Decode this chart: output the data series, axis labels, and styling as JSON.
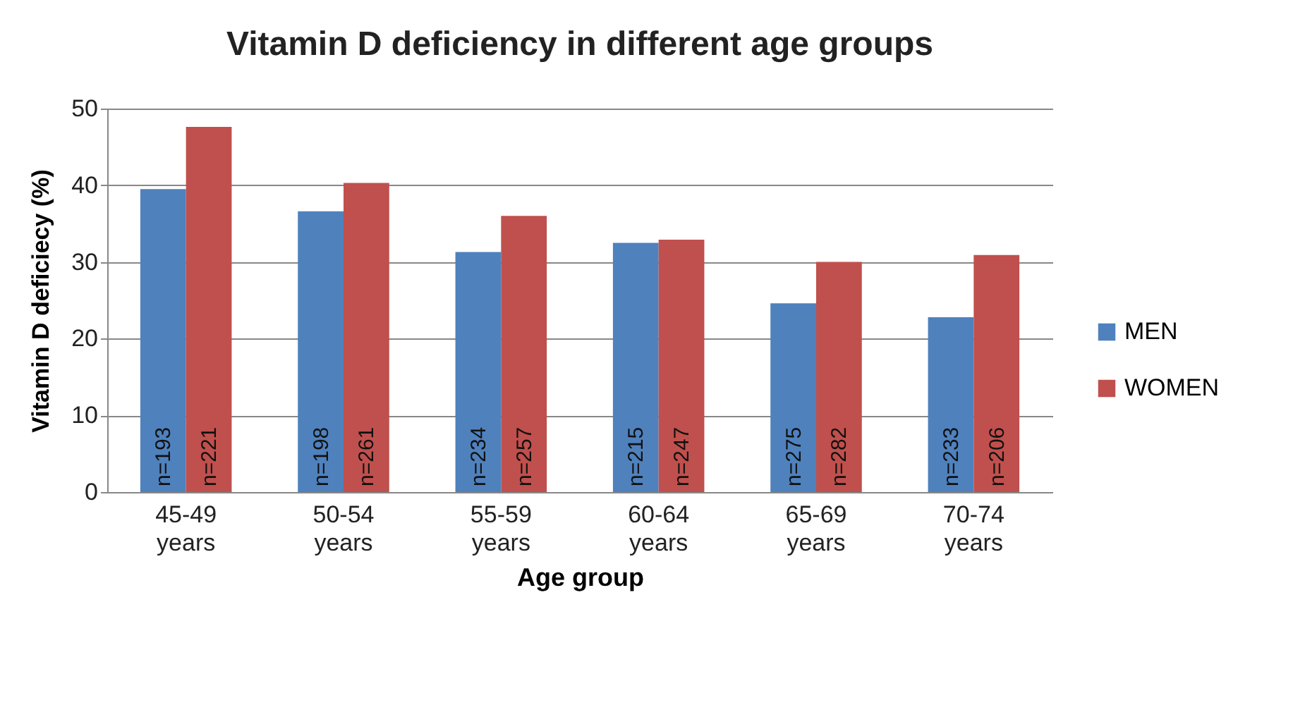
{
  "chart_data": {
    "type": "bar",
    "title": "Vitamin D deficiency in different age groups",
    "xlabel": "Age group",
    "ylabel": "Vitamin D deficiecy (%)",
    "categories": [
      "45-49 years",
      "50-54 years",
      "55-59 years",
      "60-64 years",
      "65-69 years",
      "70-74 years"
    ],
    "series": [
      {
        "name": "MEN",
        "color": "#4f81bd",
        "values": [
          39.5,
          36.6,
          31.3,
          32.5,
          24.6,
          22.8
        ]
      },
      {
        "name": "WOMEN",
        "color": "#c0504d",
        "values": [
          47.6,
          40.3,
          36.0,
          32.9,
          30.0,
          30.9
        ]
      }
    ],
    "annotations": [
      {
        "text": "n=193",
        "x": "45-49 years",
        "y": 0
      },
      {
        "text": "n=221",
        "x": "45-49 years",
        "y": 0
      },
      {
        "text": "n=198",
        "x": "50-54 years",
        "y": 0
      },
      {
        "text": "n=261",
        "x": "50-54 years",
        "y": 0
      },
      {
        "text": "n=234",
        "x": "55-59 years",
        "y": 0
      },
      {
        "text": "n=257",
        "x": "55-59 years",
        "y": 0
      },
      {
        "text": "n=215",
        "x": "60-64 years",
        "y": 0
      },
      {
        "text": "n=247",
        "x": "60-64 years",
        "y": 0
      },
      {
        "text": "n=275",
        "x": "65-69 years",
        "y": 0
      },
      {
        "text": "n=282",
        "x": "65-69 years",
        "y": 0
      },
      {
        "text": "n=233",
        "x": "70-74 years",
        "y": 0
      },
      {
        "text": "n=206",
        "x": "70-74 years",
        "y": 0
      }
    ],
    "ylim": [
      0,
      50
    ],
    "yticks": [
      0,
      10,
      20,
      30,
      40,
      50
    ],
    "grid": "y",
    "legend": "right"
  }
}
